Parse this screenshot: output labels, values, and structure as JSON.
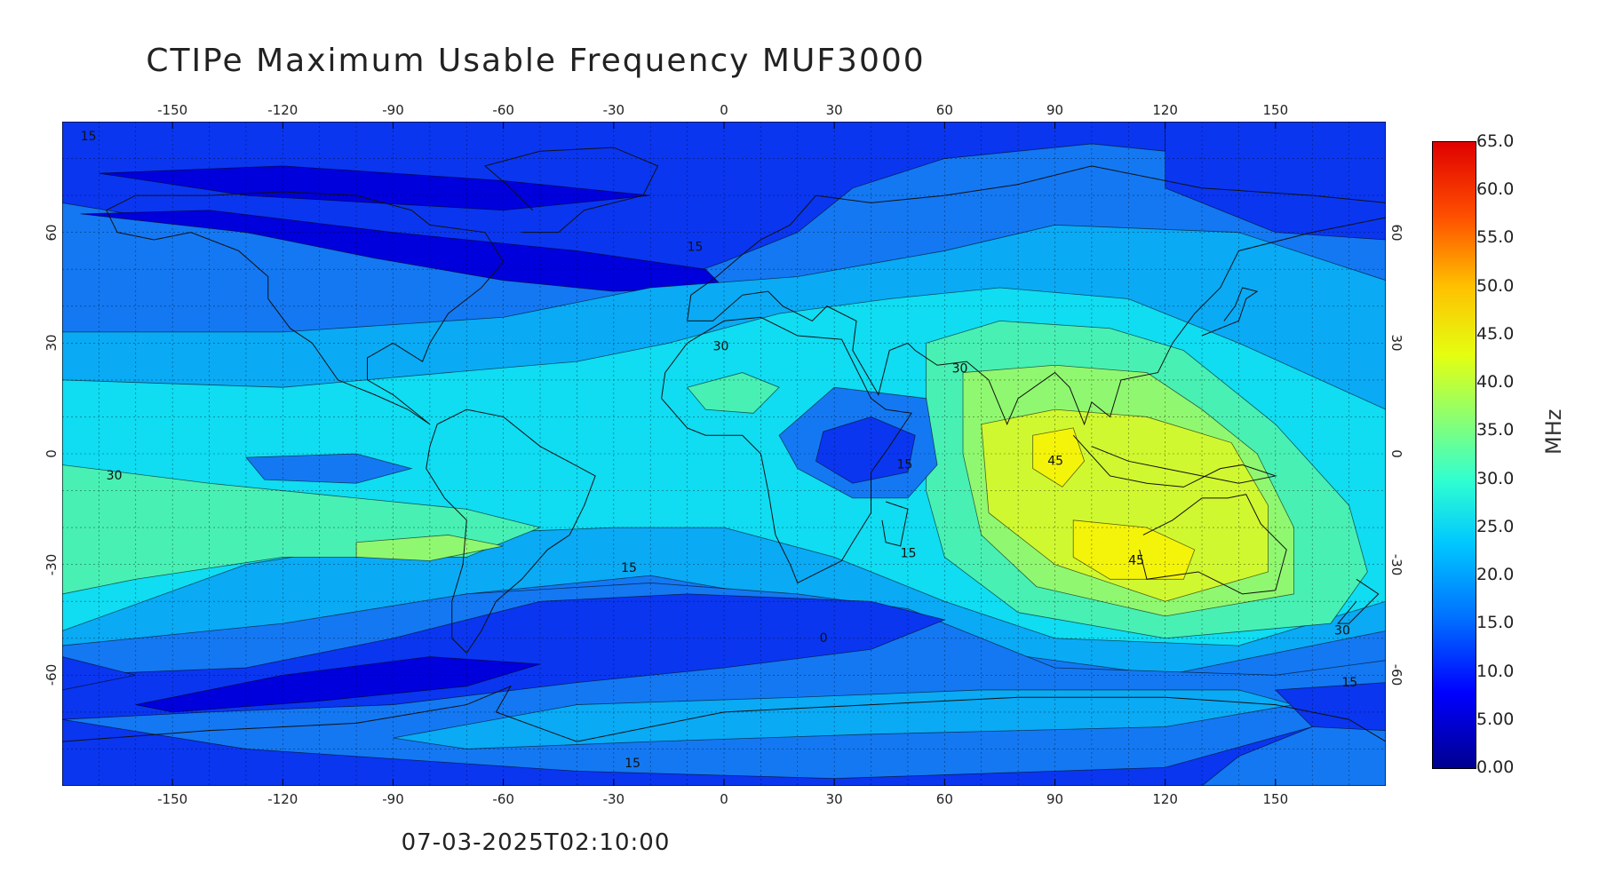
{
  "title": "CTIPe Maximum Usable Frequency MUF3000",
  "timestamp": "07-03-2025T02:10:00",
  "lon_ticks": [
    "-150",
    "-120",
    "-90",
    "-60",
    "-30",
    "0",
    "30",
    "60",
    "90",
    "120",
    "150"
  ],
  "lon_values": [
    -150,
    -120,
    -90,
    -60,
    -30,
    0,
    30,
    60,
    90,
    120,
    150
  ],
  "lat_ticks": [
    "60",
    "30",
    "0",
    "-30",
    "-60"
  ],
  "lat_values": [
    60,
    30,
    0,
    -30,
    -60
  ],
  "colorbar": {
    "unit": "MHz",
    "labels": [
      "65.0",
      "60.0",
      "55.0",
      "50.0",
      "45.0",
      "40.0",
      "35.0",
      "30.0",
      "25.0",
      "20.0",
      "15.0",
      "10.0",
      "5.00",
      "0.00"
    ],
    "values": [
      65,
      60,
      55,
      50,
      45,
      40,
      35,
      30,
      25,
      20,
      15,
      10,
      5,
      0
    ],
    "min": 0,
    "max": 65
  },
  "contour_labels": [
    {
      "text": "15",
      "lon": -175,
      "lat": 85
    },
    {
      "text": "15",
      "lon": -10,
      "lat": 55
    },
    {
      "text": "30",
      "lon": -3,
      "lat": 28
    },
    {
      "text": "30",
      "lon": 62,
      "lat": 22
    },
    {
      "text": "15",
      "lon": 47,
      "lat": -4
    },
    {
      "text": "45",
      "lon": 88,
      "lat": -3
    },
    {
      "text": "45",
      "lon": 110,
      "lat": -30
    },
    {
      "text": "30",
      "lon": -168,
      "lat": -7
    },
    {
      "text": "15",
      "lon": -28,
      "lat": -32
    },
    {
      "text": "15",
      "lon": 48,
      "lat": -28
    },
    {
      "text": "0",
      "lon": 26,
      "lat": -51
    },
    {
      "text": "30",
      "lon": 166,
      "lat": -49
    },
    {
      "text": "15",
      "lon": 168,
      "lat": -63
    },
    {
      "text": "15",
      "lon": -27,
      "lat": -85
    }
  ],
  "colors": {
    "c0": "#00008f",
    "c5": "#0000dc",
    "c10": "#0a36f0",
    "c15": "#1478f2",
    "c20": "#0aaaf5",
    "c25": "#10dcf2",
    "c30": "#48f0b4",
    "c35": "#90f870",
    "c40": "#d0f830",
    "c45": "#f4f40a",
    "land_line": "#111111"
  }
}
